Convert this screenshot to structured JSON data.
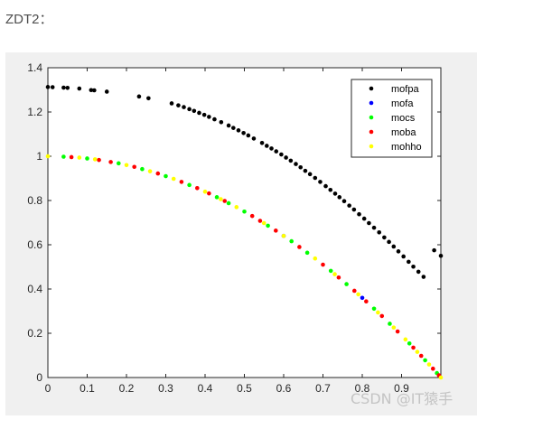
{
  "heading": "ZDT2：",
  "watermark": "CSDN @IT猿手",
  "chart_data": {
    "type": "scatter",
    "xlim": [
      0,
      1
    ],
    "ylim": [
      0,
      1.4
    ],
    "xticks": [
      0,
      0.1,
      0.2,
      0.3,
      0.4,
      0.5,
      0.6,
      0.7,
      0.8,
      0.9
    ],
    "xtick_labels": [
      "0",
      "0.1",
      "0.2",
      "0.3",
      "0.4",
      "0.5",
      "0.6",
      "0.7",
      "0.8",
      "0.9"
    ],
    "yticks": [
      0,
      0.2,
      0.4,
      0.6,
      0.8,
      1,
      1.2,
      1.4
    ],
    "ytick_labels": [
      "0",
      "0.2",
      "0.4",
      "0.6",
      "0.8",
      "1",
      "1.2",
      "1.4"
    ],
    "grid": false,
    "legend_position": "top-right",
    "series": [
      {
        "name": "mofpa",
        "color": "#000000",
        "x": [
          0.0,
          0.012,
          0.04,
          0.05,
          0.08,
          0.11,
          0.118,
          0.15,
          0.232,
          0.256,
          0.315,
          0.332,
          0.346,
          0.36,
          0.372,
          0.385,
          0.398,
          0.41,
          0.424,
          0.441,
          0.46,
          0.472,
          0.485,
          0.498,
          0.51,
          0.524,
          0.545,
          0.557,
          0.569,
          0.581,
          0.594,
          0.606,
          0.618,
          0.631,
          0.643,
          0.655,
          0.667,
          0.68,
          0.693,
          0.707,
          0.719,
          0.731,
          0.742,
          0.754,
          0.767,
          0.779,
          0.792,
          0.805,
          0.817,
          0.83,
          0.843,
          0.856,
          0.868,
          0.88,
          0.892,
          0.905,
          0.918,
          0.93,
          0.943,
          0.956,
          0.983,
          1.0
        ],
        "y": [
          1.313,
          1.312,
          1.31,
          1.309,
          1.306,
          1.299,
          1.298,
          1.292,
          1.27,
          1.262,
          1.239,
          1.23,
          1.222,
          1.213,
          1.205,
          1.196,
          1.187,
          1.178,
          1.167,
          1.154,
          1.139,
          1.128,
          1.117,
          1.105,
          1.094,
          1.08,
          1.06,
          1.047,
          1.035,
          1.022,
          1.008,
          0.994,
          0.98,
          0.965,
          0.95,
          0.934,
          0.919,
          0.902,
          0.884,
          0.865,
          0.848,
          0.831,
          0.815,
          0.797,
          0.777,
          0.759,
          0.738,
          0.718,
          0.698,
          0.677,
          0.656,
          0.633,
          0.613,
          0.592,
          0.57,
          0.547,
          0.523,
          0.501,
          0.478,
          0.455,
          0.575,
          0.55
        ]
      },
      {
        "name": "mofa",
        "color": "#0000ff",
        "x": [
          0.6,
          0.8
        ],
        "y": [
          0.64,
          0.36
        ]
      },
      {
        "name": "mocs",
        "color": "#00ff00",
        "x": [
          0.04,
          0.1,
          0.18,
          0.24,
          0.3,
          0.36,
          0.43,
          0.46,
          0.5,
          0.56,
          0.62,
          0.66,
          0.72,
          0.76,
          0.83,
          0.87,
          0.92,
          0.96,
          0.99
        ],
        "y": [
          0.998,
          0.99,
          0.968,
          0.942,
          0.91,
          0.87,
          0.815,
          0.788,
          0.75,
          0.686,
          0.616,
          0.564,
          0.482,
          0.422,
          0.311,
          0.243,
          0.154,
          0.078,
          0.02
        ]
      },
      {
        "name": "moba",
        "color": "#ff0000",
        "x": [
          0.06,
          0.13,
          0.16,
          0.22,
          0.28,
          0.34,
          0.38,
          0.41,
          0.45,
          0.52,
          0.54,
          0.58,
          0.64,
          0.7,
          0.74,
          0.78,
          0.81,
          0.85,
          0.89,
          0.93,
          0.95,
          0.98,
          0.995
        ],
        "y": [
          0.996,
          0.983,
          0.974,
          0.952,
          0.922,
          0.884,
          0.856,
          0.832,
          0.798,
          0.73,
          0.708,
          0.664,
          0.59,
          0.51,
          0.452,
          0.392,
          0.344,
          0.278,
          0.208,
          0.135,
          0.098,
          0.04,
          0.01
        ]
      },
      {
        "name": "mohho",
        "color": "#ffff00",
        "x": [
          0.0,
          0.08,
          0.12,
          0.2,
          0.26,
          0.32,
          0.4,
          0.44,
          0.48,
          0.55,
          0.6,
          0.68,
          0.73,
          0.79,
          0.84,
          0.88,
          0.91,
          0.94,
          0.97,
          1.0
        ],
        "y": [
          1.0,
          0.994,
          0.986,
          0.96,
          0.932,
          0.898,
          0.84,
          0.806,
          0.77,
          0.698,
          0.64,
          0.538,
          0.467,
          0.376,
          0.294,
          0.226,
          0.172,
          0.116,
          0.059,
          0.0
        ]
      }
    ]
  }
}
